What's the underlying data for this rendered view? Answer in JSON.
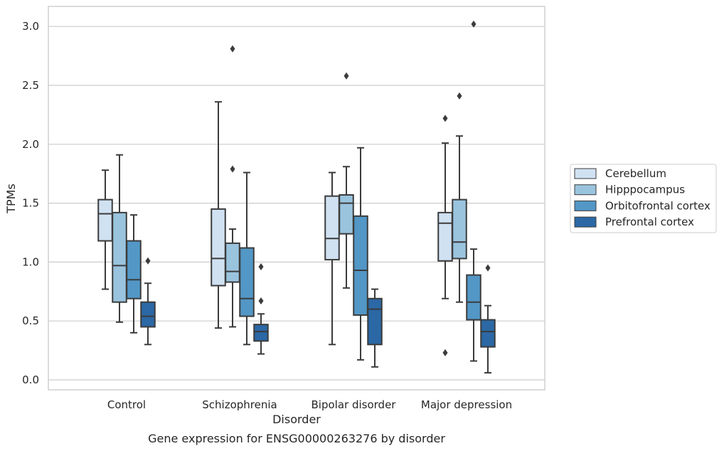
{
  "caption": "Gene expression for ENSG00000263276 by disorder",
  "chart_data": {
    "type": "box",
    "xlabel": "Disorder",
    "ylabel": "TPMs",
    "ylim": [
      -0.08,
      3.17
    ],
    "yticks": [
      "0.0",
      "0.5",
      "1.0",
      "1.5",
      "2.0",
      "2.5",
      "3.0"
    ],
    "ytick_values": [
      0.0,
      0.5,
      1.0,
      1.5,
      2.0,
      2.5,
      3.0
    ],
    "grid": "horizontal",
    "legend_position": "right",
    "categories": [
      "Control",
      "Schizophrenia",
      "Bipolar disorder",
      "Major depression"
    ],
    "series": [
      {
        "name": "Cerebellum",
        "color": "#d0e1f2",
        "boxes": [
          {
            "whislo": 0.77,
            "q1": 1.18,
            "med": 1.41,
            "q3": 1.53,
            "whishi": 1.78,
            "fliers": []
          },
          {
            "whislo": 0.44,
            "q1": 0.8,
            "med": 1.03,
            "q3": 1.45,
            "whishi": 2.36,
            "fliers": []
          },
          {
            "whislo": 0.3,
            "q1": 1.02,
            "med": 1.2,
            "q3": 1.56,
            "whishi": 1.76,
            "fliers": []
          },
          {
            "whislo": 0.69,
            "q1": 1.01,
            "med": 1.33,
            "q3": 1.42,
            "whishi": 2.01,
            "fliers": [
              2.22,
              0.23
            ]
          }
        ]
      },
      {
        "name": "Hipppocampus",
        "color": "#9ac4de",
        "boxes": [
          {
            "whislo": 0.49,
            "q1": 0.66,
            "med": 0.97,
            "q3": 1.42,
            "whishi": 1.91,
            "fliers": []
          },
          {
            "whislo": 0.45,
            "q1": 0.83,
            "med": 0.92,
            "q3": 1.16,
            "whishi": 1.28,
            "fliers": [
              2.81,
              1.79
            ]
          },
          {
            "whislo": 0.78,
            "q1": 1.24,
            "med": 1.5,
            "q3": 1.57,
            "whishi": 1.81,
            "fliers": [
              2.58
            ]
          },
          {
            "whislo": 0.66,
            "q1": 1.03,
            "med": 1.17,
            "q3": 1.53,
            "whishi": 2.07,
            "fliers": [
              2.41
            ]
          }
        ]
      },
      {
        "name": "Orbitofrontal cortex",
        "color": "#5297c6",
        "boxes": [
          {
            "whislo": 0.4,
            "q1": 0.69,
            "med": 0.85,
            "q3": 1.18,
            "whishi": 1.4,
            "fliers": []
          },
          {
            "whislo": 0.3,
            "q1": 0.54,
            "med": 0.69,
            "q3": 1.12,
            "whishi": 1.76,
            "fliers": []
          },
          {
            "whislo": 0.17,
            "q1": 0.55,
            "med": 0.93,
            "q3": 1.39,
            "whishi": 1.97,
            "fliers": []
          },
          {
            "whislo": 0.16,
            "q1": 0.51,
            "med": 0.66,
            "q3": 0.89,
            "whishi": 1.11,
            "fliers": [
              3.02
            ]
          }
        ]
      },
      {
        "name": "Prefrontal cortex",
        "color": "#2b68a5",
        "boxes": [
          {
            "whislo": 0.3,
            "q1": 0.45,
            "med": 0.54,
            "q3": 0.66,
            "whishi": 0.82,
            "fliers": [
              1.01
            ]
          },
          {
            "whislo": 0.22,
            "q1": 0.33,
            "med": 0.41,
            "q3": 0.47,
            "whishi": 0.56,
            "fliers": [
              0.96,
              0.67
            ]
          },
          {
            "whislo": 0.11,
            "q1": 0.3,
            "med": 0.6,
            "q3": 0.69,
            "whishi": 0.77,
            "fliers": []
          },
          {
            "whislo": 0.06,
            "q1": 0.28,
            "med": 0.41,
            "q3": 0.51,
            "whishi": 0.63,
            "fliers": [
              0.95
            ]
          }
        ]
      }
    ]
  }
}
